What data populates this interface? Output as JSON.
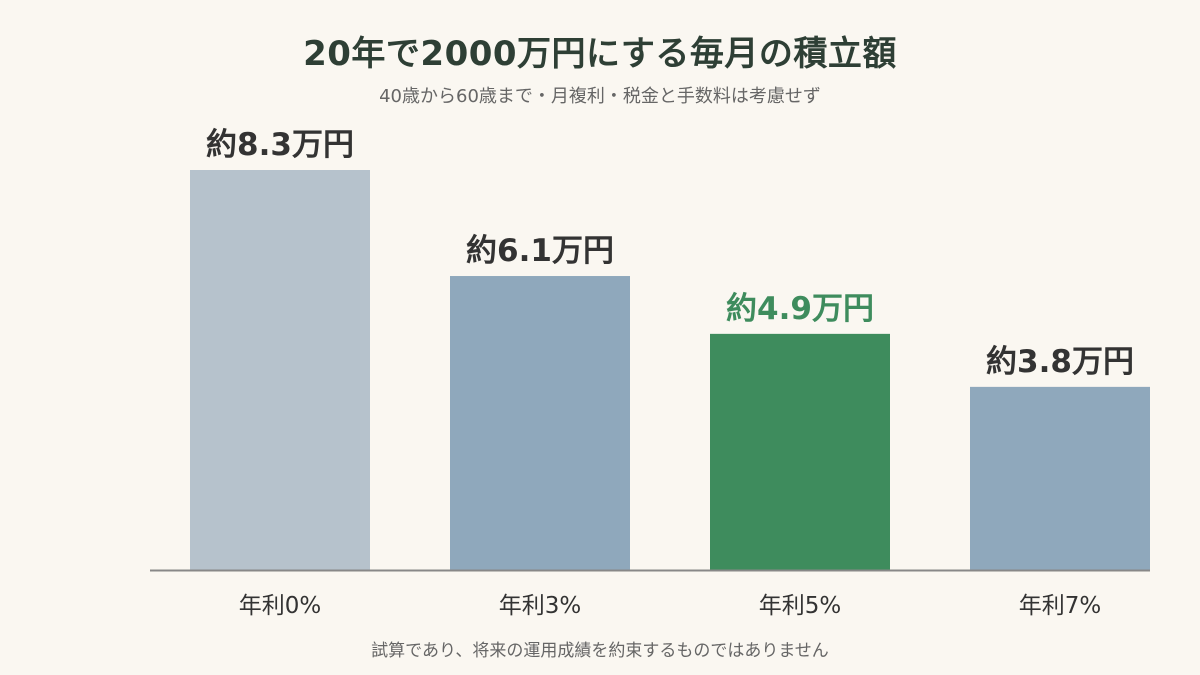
{
  "chart_data": {
    "type": "bar",
    "title": "20年で2000万円にする毎月の積立額",
    "subtitle": "40歳から60歳まで・月複利・税金と手数料は考慮せず",
    "categories": [
      "年利0%",
      "年利3%",
      "年利5%",
      "年利7%"
    ],
    "values": [
      8.3,
      6.1,
      4.9,
      3.8
    ],
    "data_labels": [
      "約8.3万円",
      "約6.1万円",
      "約4.9万円",
      "約3.8万円"
    ],
    "unit": "万円",
    "ylim": [
      0,
      8.3
    ],
    "highlight_index": 2,
    "grid": false,
    "legend": "none",
    "bar_colors": [
      "#b6c2cc",
      "#8fa8bc",
      "#3e8c5d",
      "#8fa8bc"
    ],
    "label_colors": [
      "#333333",
      "#333333",
      "#3e8c5d",
      "#333333"
    ],
    "footnote": "試算であり、将来の運用成績を約束するものではありません"
  },
  "colors": {
    "background": "#faf7f1",
    "title": "#2e3f35",
    "axis": "#888888",
    "muted_text": "#666666"
  }
}
